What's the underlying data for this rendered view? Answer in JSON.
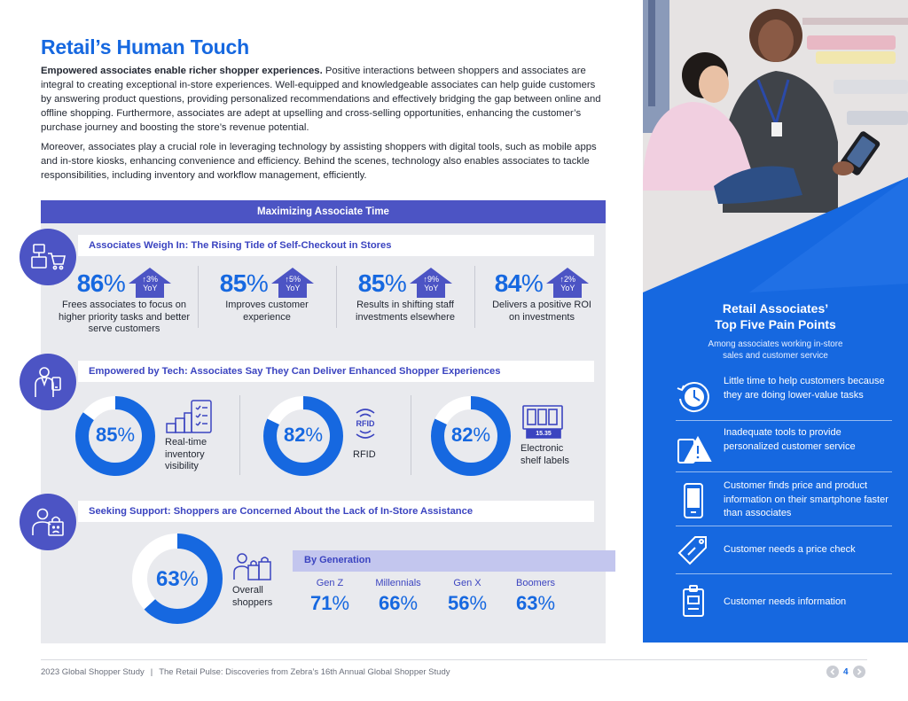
{
  "title": "Retail’s Human Touch",
  "intro": {
    "p1_bold": "Empowered associates enable richer shopper experiences.",
    "p1_rest": " Positive interactions between shoppers and associates are integral to creating exceptional in-store experiences. Well-equipped and knowledgeable associates can help guide customers by answering product questions, providing personalized recommendations and effectively bridging the gap between online and offline shopping. Furthermore, associates are adept at upselling and cross-selling opportunities, enhancing the customer’s purchase journey and boosting the store’s revenue potential.",
    "p2": "Moreover, associates play a crucial role in leveraging technology by assisting shoppers with digital tools, such as mobile apps and in-store kiosks, enhancing convenience and efficiency. Behind the scenes, technology also enables associates to tackle responsibilities, including inventory and workflow management, efficiently."
  },
  "banner": "Maximizing Associate Time",
  "section1": {
    "heading": "Associates Weigh In: The Rising Tide of Self-Checkout in Stores",
    "stats": [
      {
        "value": "86",
        "yoy_line1": "↑3%",
        "yoy_line2": "YoY",
        "desc": "Frees associates to focus on higher priority tasks and better serve customers"
      },
      {
        "value": "85",
        "yoy_line1": "↑5%",
        "yoy_line2": "YoY",
        "desc": "Improves customer experience"
      },
      {
        "value": "85",
        "yoy_line1": "↑9%",
        "yoy_line2": "YoY",
        "desc": "Results in shifting staff investments elsewhere"
      },
      {
        "value": "84",
        "yoy_line1": "↑2%",
        "yoy_line2": "YoY",
        "desc": "Delivers a positive ROI on investments"
      }
    ]
  },
  "section2": {
    "heading": "Empowered by Tech: Associates Say They Can Deliver Enhanced Shopper Experiences",
    "items": [
      {
        "value": 85,
        "label": "Real-time inventory visibility",
        "icon": "inventory-checklist-icon"
      },
      {
        "value": 82,
        "label": "RFID",
        "icon": "rfid-icon",
        "icon_text": "RFID"
      },
      {
        "value": 82,
        "label": "Electronic shelf labels",
        "icon": "shelf-label-icon",
        "icon_text": "15.35"
      }
    ]
  },
  "section3": {
    "heading": "Seeking Support: Shoppers are Concerned About the Lack of In-Store Assistance",
    "overall": {
      "value": 63,
      "label": "Overall shoppers"
    },
    "by_generation_title": "By Generation",
    "generations": [
      {
        "name": "Gen Z",
        "value": "71"
      },
      {
        "name": "Millennials",
        "value": "66"
      },
      {
        "name": "Gen X",
        "value": "56"
      },
      {
        "name": "Boomers",
        "value": "63"
      }
    ]
  },
  "pct_symbol": "%",
  "side": {
    "title_line1": "Retail Associates’",
    "title_line2": "Top Five Pain Points",
    "sub_line1": "Among associates working in-store",
    "sub_line2": "sales and customer service",
    "points": [
      {
        "text": "Little time to help customers because they are doing lower-value tasks",
        "icon": "clock-refresh-icon"
      },
      {
        "text": "Inadequate tools to provide personalized customer service",
        "icon": "warning-tablet-icon"
      },
      {
        "text": "Customer finds price and product information on their smartphone faster than associates",
        "icon": "smartphone-icon"
      },
      {
        "text": "Customer needs a price check",
        "icon": "price-tag-icon"
      },
      {
        "text": "Customer needs information",
        "icon": "clipboard-icon"
      }
    ]
  },
  "footer": {
    "left": "2023 Global Shopper Study",
    "sep": "|",
    "right": "The Retail Pulse: Discoveries from Zebra’s 16th Annual Global Shopper Study",
    "page": "4"
  },
  "colors": {
    "accent": "#1668e0",
    "purple": "#4c54c4",
    "panel": "#e9eaee",
    "side_blue": "#1668e0"
  }
}
